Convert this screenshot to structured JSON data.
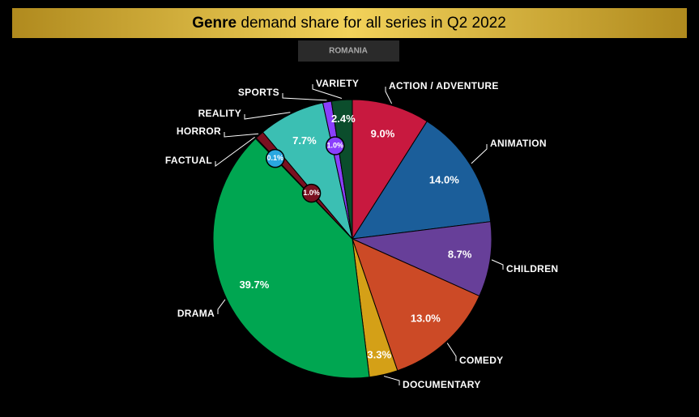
{
  "chart_data": {
    "type": "pie",
    "title_bold": "Genre",
    "title": "demand share for all series in Q2 2022",
    "subtitle": "ROMANIA",
    "categories": [
      "ACTION / ADVENTURE",
      "ANIMATION",
      "CHILDREN",
      "COMEDY",
      "DOCUMENTARY",
      "DRAMA",
      "FACTUAL",
      "HORROR",
      "REALITY",
      "SPORTS",
      "VARIETY"
    ],
    "values": [
      9.0,
      14.0,
      8.7,
      13.0,
      3.3,
      39.7,
      0.1,
      1.0,
      7.7,
      1.0,
      2.4
    ],
    "value_labels": [
      "9.0%",
      "14.0%",
      "8.7%",
      "13.0%",
      "3.3%",
      "39.7%",
      "0.1%",
      "1.0%",
      "7.7%",
      "1.0%",
      "2.4%"
    ],
    "colors": [
      "#c8193f",
      "#1b5e9a",
      "#673f99",
      "#cc4a26",
      "#d4a017",
      "#00a651",
      "#2aa7e0",
      "#7a1020",
      "#3bbfb3",
      "#8a3ffc",
      "#0b4d2c"
    ]
  }
}
